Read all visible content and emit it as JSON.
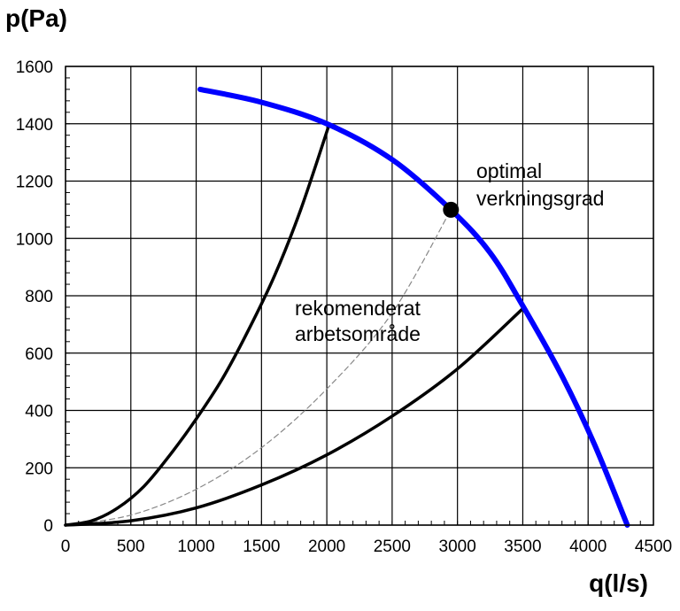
{
  "chart_data": {
    "type": "line",
    "ylabel": "p(Pa)",
    "xlabel": "q(l/s)",
    "xlim": [
      0,
      4500
    ],
    "ylim": [
      0,
      1600
    ],
    "x_ticks": [
      0,
      500,
      1000,
      1500,
      2000,
      2500,
      3000,
      3500,
      4000,
      4500
    ],
    "y_ticks": [
      0,
      200,
      400,
      600,
      800,
      1000,
      1200,
      1400,
      1600
    ],
    "grid": true,
    "series": [
      {
        "color": "#0000ff",
        "style": "thick",
        "points": [
          [
            1030,
            1520
          ],
          [
            1500,
            1475
          ],
          [
            2000,
            1400
          ],
          [
            2500,
            1275
          ],
          [
            2950,
            1100
          ],
          [
            3250,
            950
          ],
          [
            3500,
            765
          ],
          [
            3800,
            520
          ],
          [
            4050,
            280
          ],
          [
            4300,
            0
          ]
        ]
      },
      {
        "color": "#000000",
        "style": "solid",
        "points": [
          [
            0,
            0
          ],
          [
            200,
            15
          ],
          [
            400,
            60
          ],
          [
            600,
            135
          ],
          [
            800,
            245
          ],
          [
            1000,
            370
          ],
          [
            1200,
            510
          ],
          [
            1400,
            680
          ],
          [
            1600,
            870
          ],
          [
            1800,
            1100
          ],
          [
            2020,
            1400
          ]
        ]
      },
      {
        "color": "#000000",
        "style": "solid",
        "points": [
          [
            0,
            0
          ],
          [
            500,
            15
          ],
          [
            1000,
            60
          ],
          [
            1500,
            140
          ],
          [
            2000,
            245
          ],
          [
            2500,
            380
          ],
          [
            3000,
            545
          ],
          [
            3500,
            755
          ]
        ]
      },
      {
        "color": "#888888",
        "style": "dashed",
        "points": [
          [
            0,
            0
          ],
          [
            500,
            35
          ],
          [
            1000,
            125
          ],
          [
            1500,
            270
          ],
          [
            2000,
            475
          ],
          [
            2500,
            740
          ],
          [
            2950,
            1100
          ]
        ]
      }
    ],
    "points": [
      {
        "x": 2950,
        "y": 1100,
        "color": "#000000"
      }
    ],
    "annotations": [
      {
        "lines": [
          "optimal",
          "verkningsgrad"
        ]
      },
      {
        "lines": [
          "rekomenderat",
          "arbetsområde"
        ]
      }
    ]
  }
}
